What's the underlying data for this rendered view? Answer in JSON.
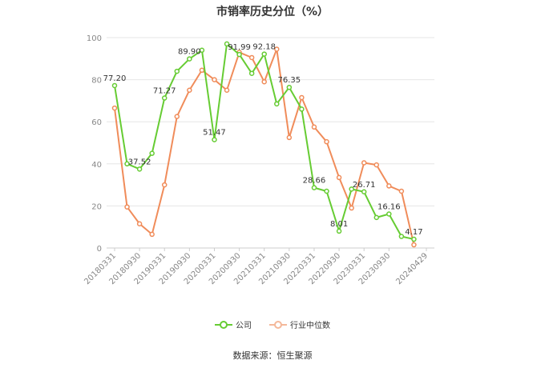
{
  "chart_data": {
    "type": "line",
    "title": "市销率历史分位（%）",
    "ylim": [
      0,
      100
    ],
    "yticks": [
      0,
      20,
      40,
      60,
      80,
      100
    ],
    "grid": true,
    "legend_position": "bottom",
    "x": [
      "20180331",
      "20180630",
      "20180930",
      "20181231",
      "20190331",
      "20190630",
      "20190930",
      "20191231",
      "20200331",
      "20200630",
      "20200930",
      "20201231",
      "20210331",
      "20210630",
      "20210930",
      "20211231",
      "20220331",
      "20220630",
      "20220930",
      "20221231",
      "20230331",
      "20230630",
      "20230930",
      "20231231",
      "20240331",
      "20240429"
    ],
    "xtick_labels": [
      "20180331",
      "20180930",
      "20190331",
      "20190930",
      "20200331",
      "20200930",
      "20210331",
      "20210930",
      "20220331",
      "20220930",
      "20230331",
      "20230930",
      "20240429"
    ],
    "series": [
      {
        "name": "公司",
        "color": "#66cc33",
        "values": [
          77.2,
          40.0,
          37.52,
          45.0,
          71.27,
          84.0,
          89.9,
          94.0,
          51.47,
          97.0,
          91.99,
          83.0,
          92.18,
          68.5,
          76.35,
          66.0,
          28.66,
          27.0,
          8.01,
          28.0,
          26.71,
          14.5,
          16.16,
          5.5,
          4.17,
          null
        ],
        "labels": {
          "0": "77.20",
          "2": "37.52",
          "4": "71.27",
          "6": "89.90",
          "8": "51.47",
          "10": "91.99",
          "12": "92.18",
          "14": "76.35",
          "16": "28.66",
          "18": "8.01",
          "20": "26.71",
          "22": "16.16",
          "24": "4.17"
        }
      },
      {
        "name": "行业中位数",
        "color": "#f08c5a",
        "values": [
          66.5,
          19.5,
          11.5,
          6.5,
          30.0,
          62.5,
          75.0,
          84.5,
          80.0,
          75.0,
          93.0,
          90.5,
          79.0,
          94.5,
          52.5,
          71.5,
          57.5,
          50.5,
          33.5,
          19.0,
          40.5,
          39.5,
          29.5,
          27.0,
          1.5,
          null
        ],
        "labels": {}
      }
    ]
  },
  "source": "数据来源：恒生聚源"
}
